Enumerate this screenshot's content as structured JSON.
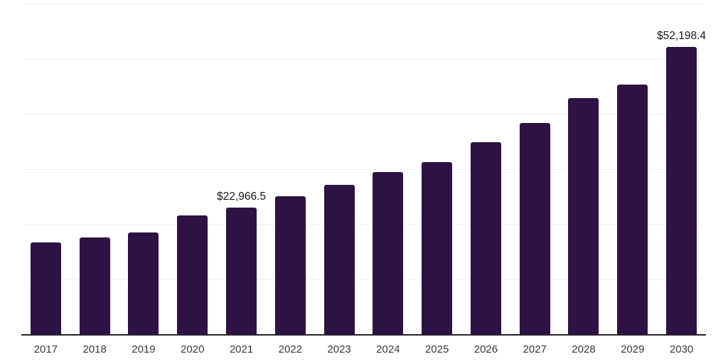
{
  "chart_data": {
    "type": "bar",
    "title": "",
    "xlabel": "",
    "ylabel": "",
    "categories": [
      "2017",
      "2018",
      "2019",
      "2020",
      "2021",
      "2022",
      "2023",
      "2024",
      "2025",
      "2026",
      "2027",
      "2028",
      "2029",
      "2030"
    ],
    "values": [
      16700,
      17500,
      18400,
      21600,
      22966.5,
      25000,
      27100,
      29400,
      31200,
      34800,
      38300,
      42800,
      45300,
      52198.4
    ],
    "annotations": [
      {
        "category": "2021",
        "text": "$22,966.5"
      },
      {
        "category": "2030",
        "text": "$52,198.4"
      }
    ],
    "ylim": [
      0,
      60000
    ],
    "grid_interval": 10000,
    "grid": true,
    "legend": false,
    "y_axis_labels_visible": false,
    "bar_color": "#2e1145",
    "gridline_color": "#f2f2f2",
    "axis_line_color": "#262626",
    "tick_label_color": "#3a3a3a",
    "annotation_color": "#1a1a1a"
  }
}
